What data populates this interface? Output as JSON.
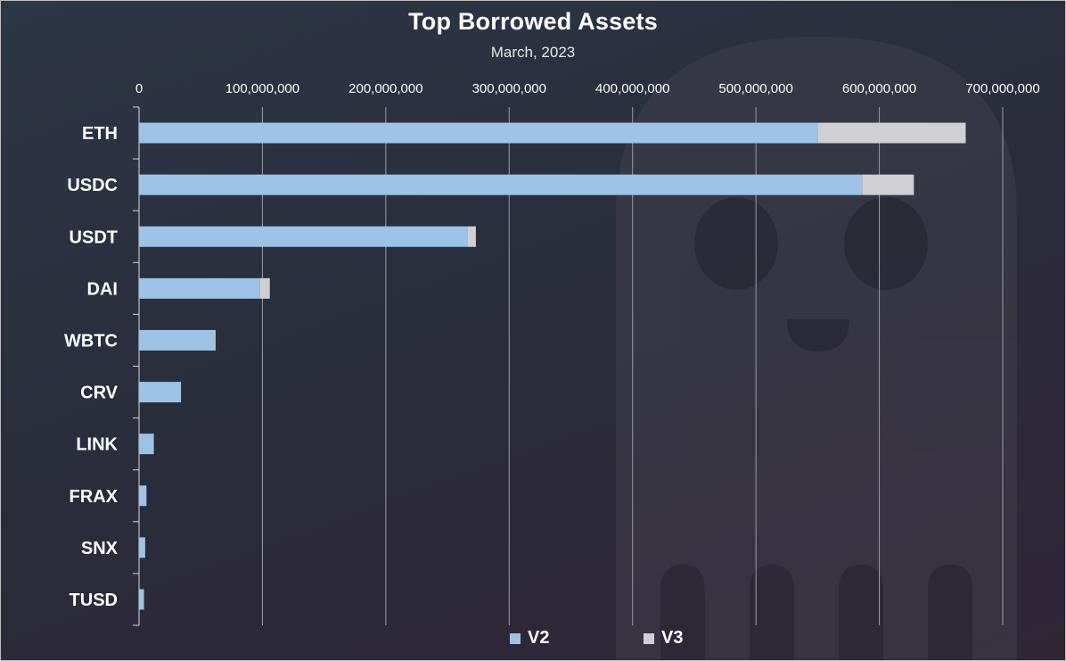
{
  "chart_data": {
    "type": "bar",
    "orientation": "horizontal",
    "stacked": true,
    "title": "Top Borrowed Assets",
    "subtitle": "March, 2023",
    "categories": [
      "ETH",
      "USDC",
      "USDT",
      "DAI",
      "WBTC",
      "CRV",
      "LINK",
      "FRAX",
      "SNX",
      "TUSD"
    ],
    "series": [
      {
        "name": "V2",
        "color": "#9dc3e6",
        "values": [
          550000000,
          586000000,
          266000000,
          98000000,
          61000000,
          34000000,
          12000000,
          6000000,
          5000000,
          4000000
        ]
      },
      {
        "name": "V3",
        "color": "#d0cfd4",
        "values": [
          120000000,
          42000000,
          7000000,
          8000000,
          1000000,
          0,
          0,
          0,
          0,
          0
        ]
      }
    ],
    "xlim": [
      0,
      700000000
    ],
    "x_ticks": [
      "0",
      "100,000,000",
      "200,000,000",
      "300,000,000",
      "400,000,000",
      "500,000,000",
      "600,000,000",
      "700,000,000"
    ],
    "x_tick_values": [
      0,
      100000000,
      200000000,
      300000000,
      400000000,
      500000000,
      600000000,
      700000000
    ],
    "x_axis_position": "top",
    "grid": true,
    "legend_position": "bottom",
    "colors": {
      "gridline": "#9a9ea8",
      "text": "#ffffff",
      "background": "#2b2f3e"
    }
  }
}
